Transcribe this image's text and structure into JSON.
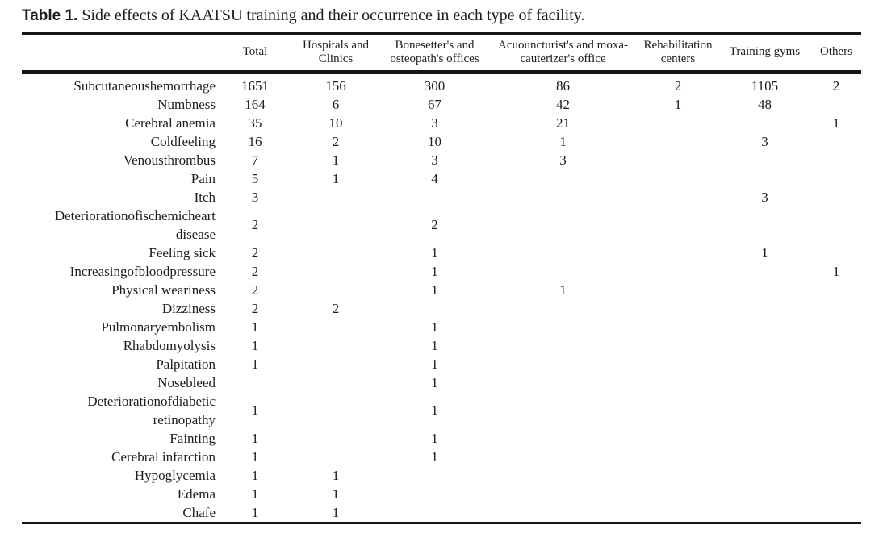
{
  "title": {
    "label": "Table 1.",
    "text": " Side effects of KAATSU training and their occurrence in each type of facility."
  },
  "chart_data": {
    "type": "table",
    "title": "Side effects of KAATSU training and their occurrence in each type of facility.",
    "columns": [
      "",
      "Total",
      "Hospitals and Clinics",
      "Bonesetter's and osteopath's offices",
      "Acuouncturist's and moxa-cauterizer's office",
      "Rehabilitation centers",
      "Training gyms",
      "Others"
    ]
  },
  "table": {
    "columns": [
      "",
      "Total",
      "Hospitals and Clinics",
      "Bonesetter's and osteopath's offices",
      "Acuouncturist's and moxa-cauterizer's office",
      "Rehabilitation centers",
      "Training gyms",
      "Others"
    ],
    "rows": [
      {
        "label": "Subcutaneoushemorrhage",
        "values": [
          "1651",
          "156",
          "300",
          "86",
          "2",
          "1105",
          "2"
        ]
      },
      {
        "label": "Numbness",
        "values": [
          "164",
          "6",
          "67",
          "42",
          "1",
          "48",
          ""
        ]
      },
      {
        "label": "Cerebral anemia",
        "values": [
          "35",
          "10",
          "3",
          "21",
          "",
          "",
          "1"
        ]
      },
      {
        "label": "Coldfeeling",
        "values": [
          "16",
          "2",
          "10",
          "1",
          "",
          "3",
          ""
        ]
      },
      {
        "label": "Venousthrombus",
        "values": [
          "7",
          "1",
          "3",
          "3",
          "",
          "",
          ""
        ]
      },
      {
        "label": "Pain",
        "values": [
          "5",
          "1",
          "4",
          "",
          "",
          "",
          ""
        ]
      },
      {
        "label": "Itch",
        "values": [
          "3",
          "",
          "",
          "",
          "",
          "3",
          ""
        ]
      },
      {
        "label": "Deteriorationofischemicheart disease",
        "values": [
          "2",
          "",
          "2",
          "",
          "",
          "",
          ""
        ]
      },
      {
        "label": "Feeling sick",
        "values": [
          "2",
          "",
          "1",
          "",
          "",
          "1",
          ""
        ]
      },
      {
        "label": "Increasingofbloodpressure",
        "values": [
          "2",
          "",
          "1",
          "",
          "",
          "",
          "1"
        ]
      },
      {
        "label": "Physical weariness",
        "values": [
          "2",
          "",
          "1",
          "1",
          "",
          "",
          ""
        ]
      },
      {
        "label": "Dizziness",
        "values": [
          "2",
          "2",
          "",
          "",
          "",
          "",
          ""
        ]
      },
      {
        "label": "Pulmonaryembolism",
        "values": [
          "1",
          "",
          "1",
          "",
          "",
          "",
          ""
        ]
      },
      {
        "label": "Rhabdomyolysis",
        "values": [
          "1",
          "",
          "1",
          "",
          "",
          "",
          ""
        ]
      },
      {
        "label": "Palpitation",
        "values": [
          "1",
          "",
          "1",
          "",
          "",
          "",
          ""
        ]
      },
      {
        "label": "Nosebleed",
        "values": [
          "",
          "",
          "1",
          "",
          "",
          "",
          ""
        ]
      },
      {
        "label": "Deteriorationofdiabetic retinopathy",
        "values": [
          "1",
          "",
          "1",
          "",
          "",
          "",
          ""
        ]
      },
      {
        "label": "Fainting",
        "values": [
          "1",
          "",
          "1",
          "",
          "",
          "",
          ""
        ]
      },
      {
        "label": "Cerebral infarction",
        "values": [
          "1",
          "",
          "1",
          "",
          "",
          "",
          ""
        ]
      },
      {
        "label": "Hypoglycemia",
        "values": [
          "1",
          "1",
          "",
          "",
          "",
          "",
          ""
        ]
      },
      {
        "label": "Edema",
        "values": [
          "1",
          "1",
          "",
          "",
          "",
          "",
          ""
        ]
      },
      {
        "label": "Chafe",
        "values": [
          "1",
          "1",
          "",
          "",
          "",
          "",
          ""
        ]
      }
    ]
  }
}
